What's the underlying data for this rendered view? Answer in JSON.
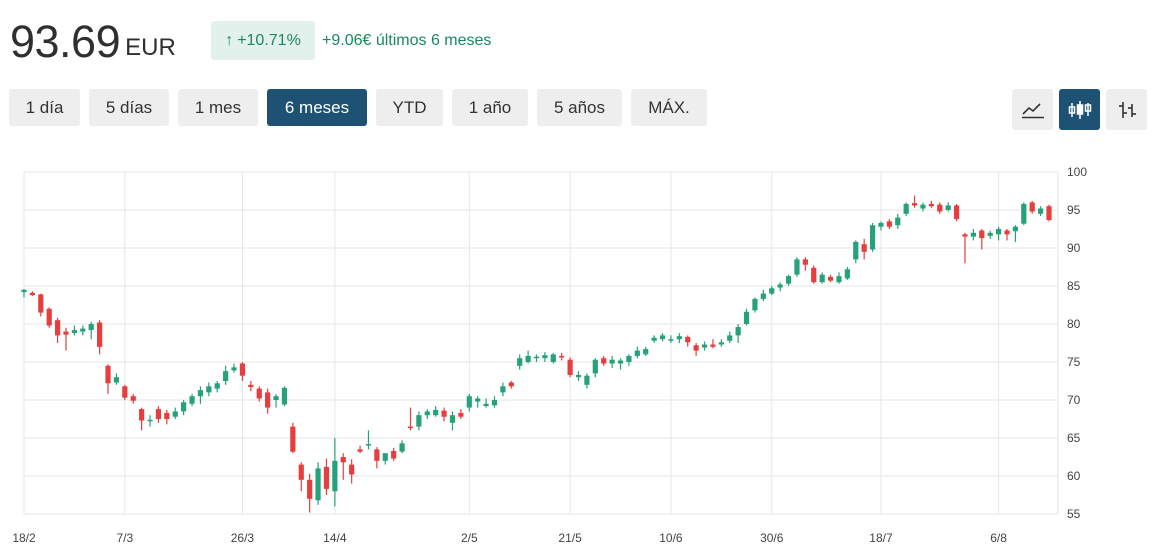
{
  "price": {
    "value": "93.69",
    "currency": "EUR"
  },
  "change": {
    "percent": "+10.71%",
    "absolute": "+9.06€ últimos 6 meses",
    "arrow_icon": "arrow-up-icon"
  },
  "ranges": [
    {
      "label": "1 día",
      "active": false
    },
    {
      "label": "5 días",
      "active": false
    },
    {
      "label": "1 mes",
      "active": false
    },
    {
      "label": "6 meses",
      "active": true
    },
    {
      "label": "YTD",
      "active": false
    },
    {
      "label": "1 año",
      "active": false
    },
    {
      "label": "5 años",
      "active": false
    },
    {
      "label": "MÁX.",
      "active": false
    }
  ],
  "tools": [
    {
      "icon": "line-chart-icon",
      "active": false
    },
    {
      "icon": "candlestick-icon",
      "active": true
    },
    {
      "icon": "ohlc-bars-icon",
      "active": false
    }
  ],
  "colors": {
    "up": "#26a17b",
    "down": "#e63e3e",
    "accent": "#1d5274",
    "positive_text": "#178a5c"
  },
  "chart_data": {
    "type": "candlestick",
    "xlabels": [
      "18/2",
      "7/3",
      "26/3",
      "14/4",
      "2/5",
      "21/5",
      "10/6",
      "30/6",
      "18/7",
      "6/8"
    ],
    "ylim": [
      55,
      100
    ],
    "yticks": [
      55,
      60,
      65,
      70,
      75,
      80,
      85,
      90,
      95,
      100
    ],
    "grid": true,
    "candles": [
      {
        "label": "18/2",
        "o": 84.2,
        "h": 84.6,
        "l": 83.5,
        "c": 84.5
      },
      {
        "o": 84.1,
        "h": 84.3,
        "l": 83.7,
        "c": 83.8
      },
      {
        "o": 83.9,
        "h": 84.0,
        "l": 81.0,
        "c": 81.5
      },
      {
        "o": 82.0,
        "h": 82.2,
        "l": 79.5,
        "c": 79.8
      },
      {
        "o": 80.5,
        "h": 80.8,
        "l": 77.5,
        "c": 78.5
      },
      {
        "o": 79.0,
        "h": 79.5,
        "l": 76.5,
        "c": 78.6
      },
      {
        "o": 78.8,
        "h": 79.8,
        "l": 78.5,
        "c": 79.2
      },
      {
        "o": 79.0,
        "h": 79.8,
        "l": 78.5,
        "c": 79.4
      },
      {
        "o": 79.2,
        "h": 80.3,
        "l": 78.0,
        "c": 80.0
      },
      {
        "o": 80.2,
        "h": 80.5,
        "l": 76.0,
        "c": 77.0
      },
      {
        "o": 74.5,
        "h": 74.7,
        "l": 70.8,
        "c": 72.2
      },
      {
        "o": 72.3,
        "h": 73.5,
        "l": 72.0,
        "c": 73.0
      },
      {
        "label": "7/3",
        "o": 71.8,
        "h": 72.0,
        "l": 70.0,
        "c": 70.3
      },
      {
        "o": 70.5,
        "h": 70.8,
        "l": 69.5,
        "c": 69.9
      },
      {
        "o": 68.8,
        "h": 69.0,
        "l": 66.0,
        "c": 67.3
      },
      {
        "o": 67.2,
        "h": 68.0,
        "l": 66.5,
        "c": 67.4
      },
      {
        "o": 68.8,
        "h": 69.2,
        "l": 67.0,
        "c": 67.5
      },
      {
        "o": 68.3,
        "h": 68.7,
        "l": 66.8,
        "c": 67.5
      },
      {
        "o": 67.8,
        "h": 69.0,
        "l": 67.5,
        "c": 68.5
      },
      {
        "o": 68.5,
        "h": 70.0,
        "l": 68.0,
        "c": 69.7
      },
      {
        "o": 69.5,
        "h": 70.8,
        "l": 69.2,
        "c": 70.5
      },
      {
        "o": 70.5,
        "h": 71.8,
        "l": 69.5,
        "c": 71.3
      },
      {
        "o": 71.0,
        "h": 72.3,
        "l": 70.5,
        "c": 71.8
      },
      {
        "o": 71.5,
        "h": 72.5,
        "l": 71.0,
        "c": 72.2
      },
      {
        "o": 72.5,
        "h": 74.5,
        "l": 72.0,
        "c": 73.8
      },
      {
        "o": 73.9,
        "h": 74.8,
        "l": 73.6,
        "c": 74.3
      },
      {
        "label": "26/3",
        "o": 74.8,
        "h": 75.0,
        "l": 72.5,
        "c": 73.2
      },
      {
        "o": 72.0,
        "h": 72.5,
        "l": 71.2,
        "c": 71.7
      },
      {
        "o": 71.5,
        "h": 71.8,
        "l": 69.8,
        "c": 70.2
      },
      {
        "o": 71.0,
        "h": 71.5,
        "l": 68.2,
        "c": 69.0
      },
      {
        "o": 70.0,
        "h": 70.8,
        "l": 69.0,
        "c": 70.5
      },
      {
        "o": 69.4,
        "h": 71.8,
        "l": 69.2,
        "c": 71.6
      },
      {
        "o": 66.5,
        "h": 67.0,
        "l": 63.0,
        "c": 63.2
      },
      {
        "o": 61.5,
        "h": 61.8,
        "l": 58.0,
        "c": 59.5
      },
      {
        "o": 59.5,
        "h": 60.3,
        "l": 55.2,
        "c": 57.0
      },
      {
        "o": 56.8,
        "h": 61.8,
        "l": 56.2,
        "c": 61.0
      },
      {
        "o": 61.2,
        "h": 62.3,
        "l": 57.5,
        "c": 58.3
      },
      {
        "label": "14/4",
        "o": 58.0,
        "h": 65.0,
        "l": 56.0,
        "c": 62.0
      },
      {
        "o": 62.5,
        "h": 63.0,
        "l": 59.5,
        "c": 61.8
      },
      {
        "o": 61.5,
        "h": 62.2,
        "l": 59.0,
        "c": 60.2
      },
      {
        "o": 63.5,
        "h": 64.0,
        "l": 63.0,
        "c": 63.2
      },
      {
        "o": 64.0,
        "h": 66.0,
        "l": 63.5,
        "c": 64.2
      },
      {
        "o": 63.5,
        "h": 63.8,
        "l": 61.0,
        "c": 62.0
      },
      {
        "o": 62.0,
        "h": 63.0,
        "l": 61.5,
        "c": 63.0
      },
      {
        "o": 63.3,
        "h": 63.7,
        "l": 62.0,
        "c": 62.3
      },
      {
        "o": 63.2,
        "h": 64.7,
        "l": 63.0,
        "c": 64.3
      },
      {
        "o": 66.5,
        "h": 69.0,
        "l": 66.0,
        "c": 66.3
      },
      {
        "o": 66.5,
        "h": 68.5,
        "l": 66.0,
        "c": 68.0
      },
      {
        "o": 68.0,
        "h": 68.8,
        "l": 67.5,
        "c": 68.5
      },
      {
        "o": 68.0,
        "h": 69.2,
        "l": 67.8,
        "c": 68.7
      },
      {
        "o": 68.6,
        "h": 69.0,
        "l": 67.2,
        "c": 67.8
      },
      {
        "o": 67.0,
        "h": 68.5,
        "l": 66.0,
        "c": 68.0
      },
      {
        "o": 68.3,
        "h": 68.8,
        "l": 67.5,
        "c": 67.8
      },
      {
        "label": "2/5",
        "o": 69.0,
        "h": 70.8,
        "l": 68.5,
        "c": 70.5
      },
      {
        "o": 69.8,
        "h": 70.5,
        "l": 69.0,
        "c": 70.2
      },
      {
        "o": 69.2,
        "h": 70.2,
        "l": 69.0,
        "c": 69.5
      },
      {
        "o": 69.3,
        "h": 70.5,
        "l": 69.0,
        "c": 70.0
      },
      {
        "o": 71.0,
        "h": 72.3,
        "l": 70.5,
        "c": 71.8
      },
      {
        "o": 72.3,
        "h": 72.5,
        "l": 71.5,
        "c": 71.8
      },
      {
        "o": 74.5,
        "h": 76.0,
        "l": 74.0,
        "c": 75.5
      },
      {
        "o": 75.0,
        "h": 76.5,
        "l": 74.8,
        "c": 75.8
      },
      {
        "o": 75.5,
        "h": 76.0,
        "l": 75.0,
        "c": 75.7
      },
      {
        "o": 75.5,
        "h": 76.3,
        "l": 75.0,
        "c": 75.9
      },
      {
        "o": 75.0,
        "h": 76.2,
        "l": 74.8,
        "c": 76.0
      },
      {
        "o": 75.8,
        "h": 76.2,
        "l": 75.2,
        "c": 75.6
      },
      {
        "label": "21/5",
        "o": 75.3,
        "h": 75.6,
        "l": 73.0,
        "c": 73.3
      },
      {
        "o": 73.0,
        "h": 73.8,
        "l": 72.5,
        "c": 73.3
      },
      {
        "o": 72.0,
        "h": 73.5,
        "l": 71.5,
        "c": 73.2
      },
      {
        "o": 73.5,
        "h": 75.5,
        "l": 73.0,
        "c": 75.3
      },
      {
        "o": 75.5,
        "h": 75.8,
        "l": 74.5,
        "c": 74.8
      },
      {
        "o": 74.8,
        "h": 75.8,
        "l": 74.2,
        "c": 75.3
      },
      {
        "o": 74.8,
        "h": 75.5,
        "l": 74.0,
        "c": 75.2
      },
      {
        "o": 75.0,
        "h": 76.0,
        "l": 74.5,
        "c": 75.8
      },
      {
        "o": 75.8,
        "h": 77.0,
        "l": 75.5,
        "c": 76.5
      },
      {
        "o": 76.0,
        "h": 77.0,
        "l": 75.8,
        "c": 76.7
      },
      {
        "o": 77.8,
        "h": 78.5,
        "l": 77.5,
        "c": 78.2
      },
      {
        "o": 78.0,
        "h": 78.8,
        "l": 77.7,
        "c": 78.5
      },
      {
        "label": "10/6",
        "o": 77.8,
        "h": 78.5,
        "l": 77.5,
        "c": 78.0
      },
      {
        "o": 78.0,
        "h": 78.8,
        "l": 77.5,
        "c": 78.4
      },
      {
        "o": 78.3,
        "h": 78.5,
        "l": 77.0,
        "c": 77.6
      },
      {
        "o": 77.2,
        "h": 77.5,
        "l": 75.8,
        "c": 76.5
      },
      {
        "o": 76.9,
        "h": 77.7,
        "l": 76.5,
        "c": 77.3
      },
      {
        "o": 77.3,
        "h": 78.0,
        "l": 76.8,
        "c": 77.0
      },
      {
        "o": 77.3,
        "h": 78.0,
        "l": 77.0,
        "c": 77.6
      },
      {
        "o": 77.8,
        "h": 79.0,
        "l": 77.5,
        "c": 78.5
      },
      {
        "o": 78.5,
        "h": 80.0,
        "l": 77.5,
        "c": 79.6
      },
      {
        "o": 80.0,
        "h": 82.0,
        "l": 79.8,
        "c": 81.6
      },
      {
        "o": 81.8,
        "h": 83.5,
        "l": 81.5,
        "c": 83.3
      },
      {
        "o": 83.3,
        "h": 84.5,
        "l": 83.0,
        "c": 84.0
      },
      {
        "label": "30/6",
        "o": 84.0,
        "h": 85.0,
        "l": 83.8,
        "c": 84.7
      },
      {
        "o": 84.8,
        "h": 85.5,
        "l": 84.3,
        "c": 85.2
      },
      {
        "o": 85.3,
        "h": 86.5,
        "l": 85.0,
        "c": 86.3
      },
      {
        "o": 86.5,
        "h": 88.8,
        "l": 86.2,
        "c": 88.5
      },
      {
        "o": 88.5,
        "h": 88.8,
        "l": 87.0,
        "c": 87.8
      },
      {
        "o": 87.4,
        "h": 87.7,
        "l": 85.3,
        "c": 85.5
      },
      {
        "o": 85.5,
        "h": 86.8,
        "l": 85.3,
        "c": 86.5
      },
      {
        "o": 86.2,
        "h": 86.5,
        "l": 85.5,
        "c": 85.7
      },
      {
        "o": 85.5,
        "h": 86.8,
        "l": 85.3,
        "c": 86.3
      },
      {
        "o": 86.0,
        "h": 87.5,
        "l": 85.8,
        "c": 87.2
      },
      {
        "o": 88.5,
        "h": 91.0,
        "l": 88.0,
        "c": 90.8
      },
      {
        "o": 90.5,
        "h": 91.2,
        "l": 88.5,
        "c": 89.5
      },
      {
        "o": 89.8,
        "h": 93.3,
        "l": 89.5,
        "c": 93.0
      },
      {
        "label": "18/7",
        "o": 92.8,
        "h": 93.5,
        "l": 92.3,
        "c": 93.3
      },
      {
        "o": 93.5,
        "h": 93.8,
        "l": 92.5,
        "c": 92.8
      },
      {
        "o": 93.0,
        "h": 94.5,
        "l": 92.5,
        "c": 94.0
      },
      {
        "o": 94.5,
        "h": 96.0,
        "l": 94.2,
        "c": 95.8
      },
      {
        "o": 95.9,
        "h": 96.9,
        "l": 95.3,
        "c": 95.6
      },
      {
        "o": 95.2,
        "h": 96.0,
        "l": 94.8,
        "c": 95.7
      },
      {
        "o": 95.8,
        "h": 96.2,
        "l": 95.3,
        "c": 95.5
      },
      {
        "o": 95.7,
        "h": 96.0,
        "l": 94.5,
        "c": 94.8
      },
      {
        "o": 95.0,
        "h": 96.0,
        "l": 94.8,
        "c": 95.6
      },
      {
        "o": 95.6,
        "h": 95.8,
        "l": 93.5,
        "c": 93.8
      },
      {
        "o": 91.8,
        "h": 92.0,
        "l": 88.0,
        "c": 91.5
      },
      {
        "o": 91.5,
        "h": 92.5,
        "l": 91.0,
        "c": 92.0
      },
      {
        "o": 92.3,
        "h": 92.5,
        "l": 89.8,
        "c": 91.3
      },
      {
        "o": 91.6,
        "h": 92.3,
        "l": 91.2,
        "c": 92.0
      },
      {
        "label": "6/8",
        "o": 91.8,
        "h": 92.8,
        "l": 91.0,
        "c": 92.5
      },
      {
        "o": 92.3,
        "h": 92.5,
        "l": 91.0,
        "c": 91.8
      },
      {
        "o": 92.2,
        "h": 93.0,
        "l": 90.8,
        "c": 92.8
      },
      {
        "o": 93.2,
        "h": 96.0,
        "l": 93.0,
        "c": 95.8
      },
      {
        "o": 96.0,
        "h": 96.2,
        "l": 94.5,
        "c": 94.8
      },
      {
        "o": 94.5,
        "h": 95.5,
        "l": 94.2,
        "c": 95.2
      },
      {
        "o": 95.5,
        "h": 95.7,
        "l": 93.5,
        "c": 93.69
      }
    ]
  }
}
